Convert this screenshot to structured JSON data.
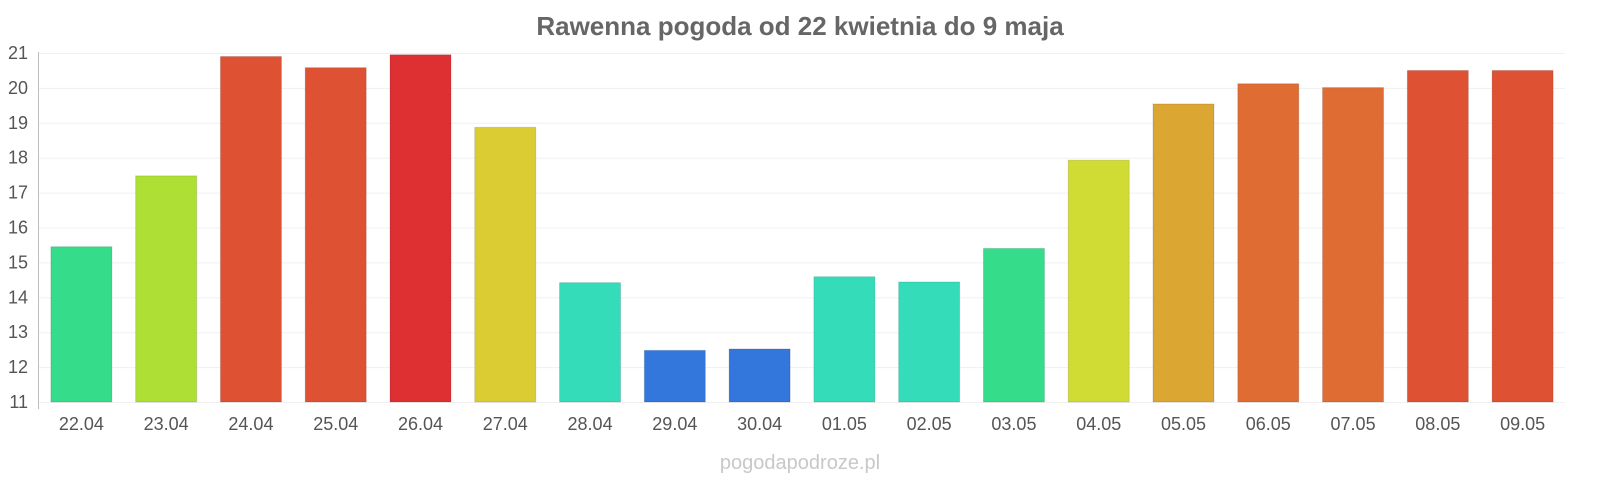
{
  "chart_data": {
    "type": "bar",
    "title": "Rawenna pogoda od 22 kwietnia do 9 maja",
    "xlabel": "",
    "ylabel": "",
    "ylim": [
      11,
      21
    ],
    "yticks": [
      "11",
      "12",
      "13",
      "14",
      "15",
      "16",
      "17",
      "18",
      "19",
      "20",
      "21"
    ],
    "grid": true,
    "categories": [
      "22.04",
      "23.04",
      "24.04",
      "25.04",
      "26.04",
      "27.04",
      "28.04",
      "29.04",
      "30.04",
      "01.05",
      "02.05",
      "03.05",
      "04.05",
      "05.05",
      "06.05",
      "07.05",
      "08.05",
      "09.05"
    ],
    "values": [
      15.45,
      17.48,
      20.9,
      20.58,
      20.95,
      18.87,
      14.42,
      12.48,
      12.52,
      14.59,
      14.44,
      15.4,
      17.93,
      19.54,
      20.12,
      20.01,
      20.5,
      20.5
    ],
    "colors": [
      "#35dc8a",
      "#addf34",
      "#de5233",
      "#de5233",
      "#de3033",
      "#dccc33",
      "#35dcba",
      "#3376dc",
      "#3376dc",
      "#35dcba",
      "#35dcba",
      "#35dc8a",
      "#d0dc33",
      "#dca633",
      "#de6c33",
      "#de6c33",
      "#de5233",
      "#de5233"
    ]
  },
  "watermark": "pogodapodroze.pl"
}
